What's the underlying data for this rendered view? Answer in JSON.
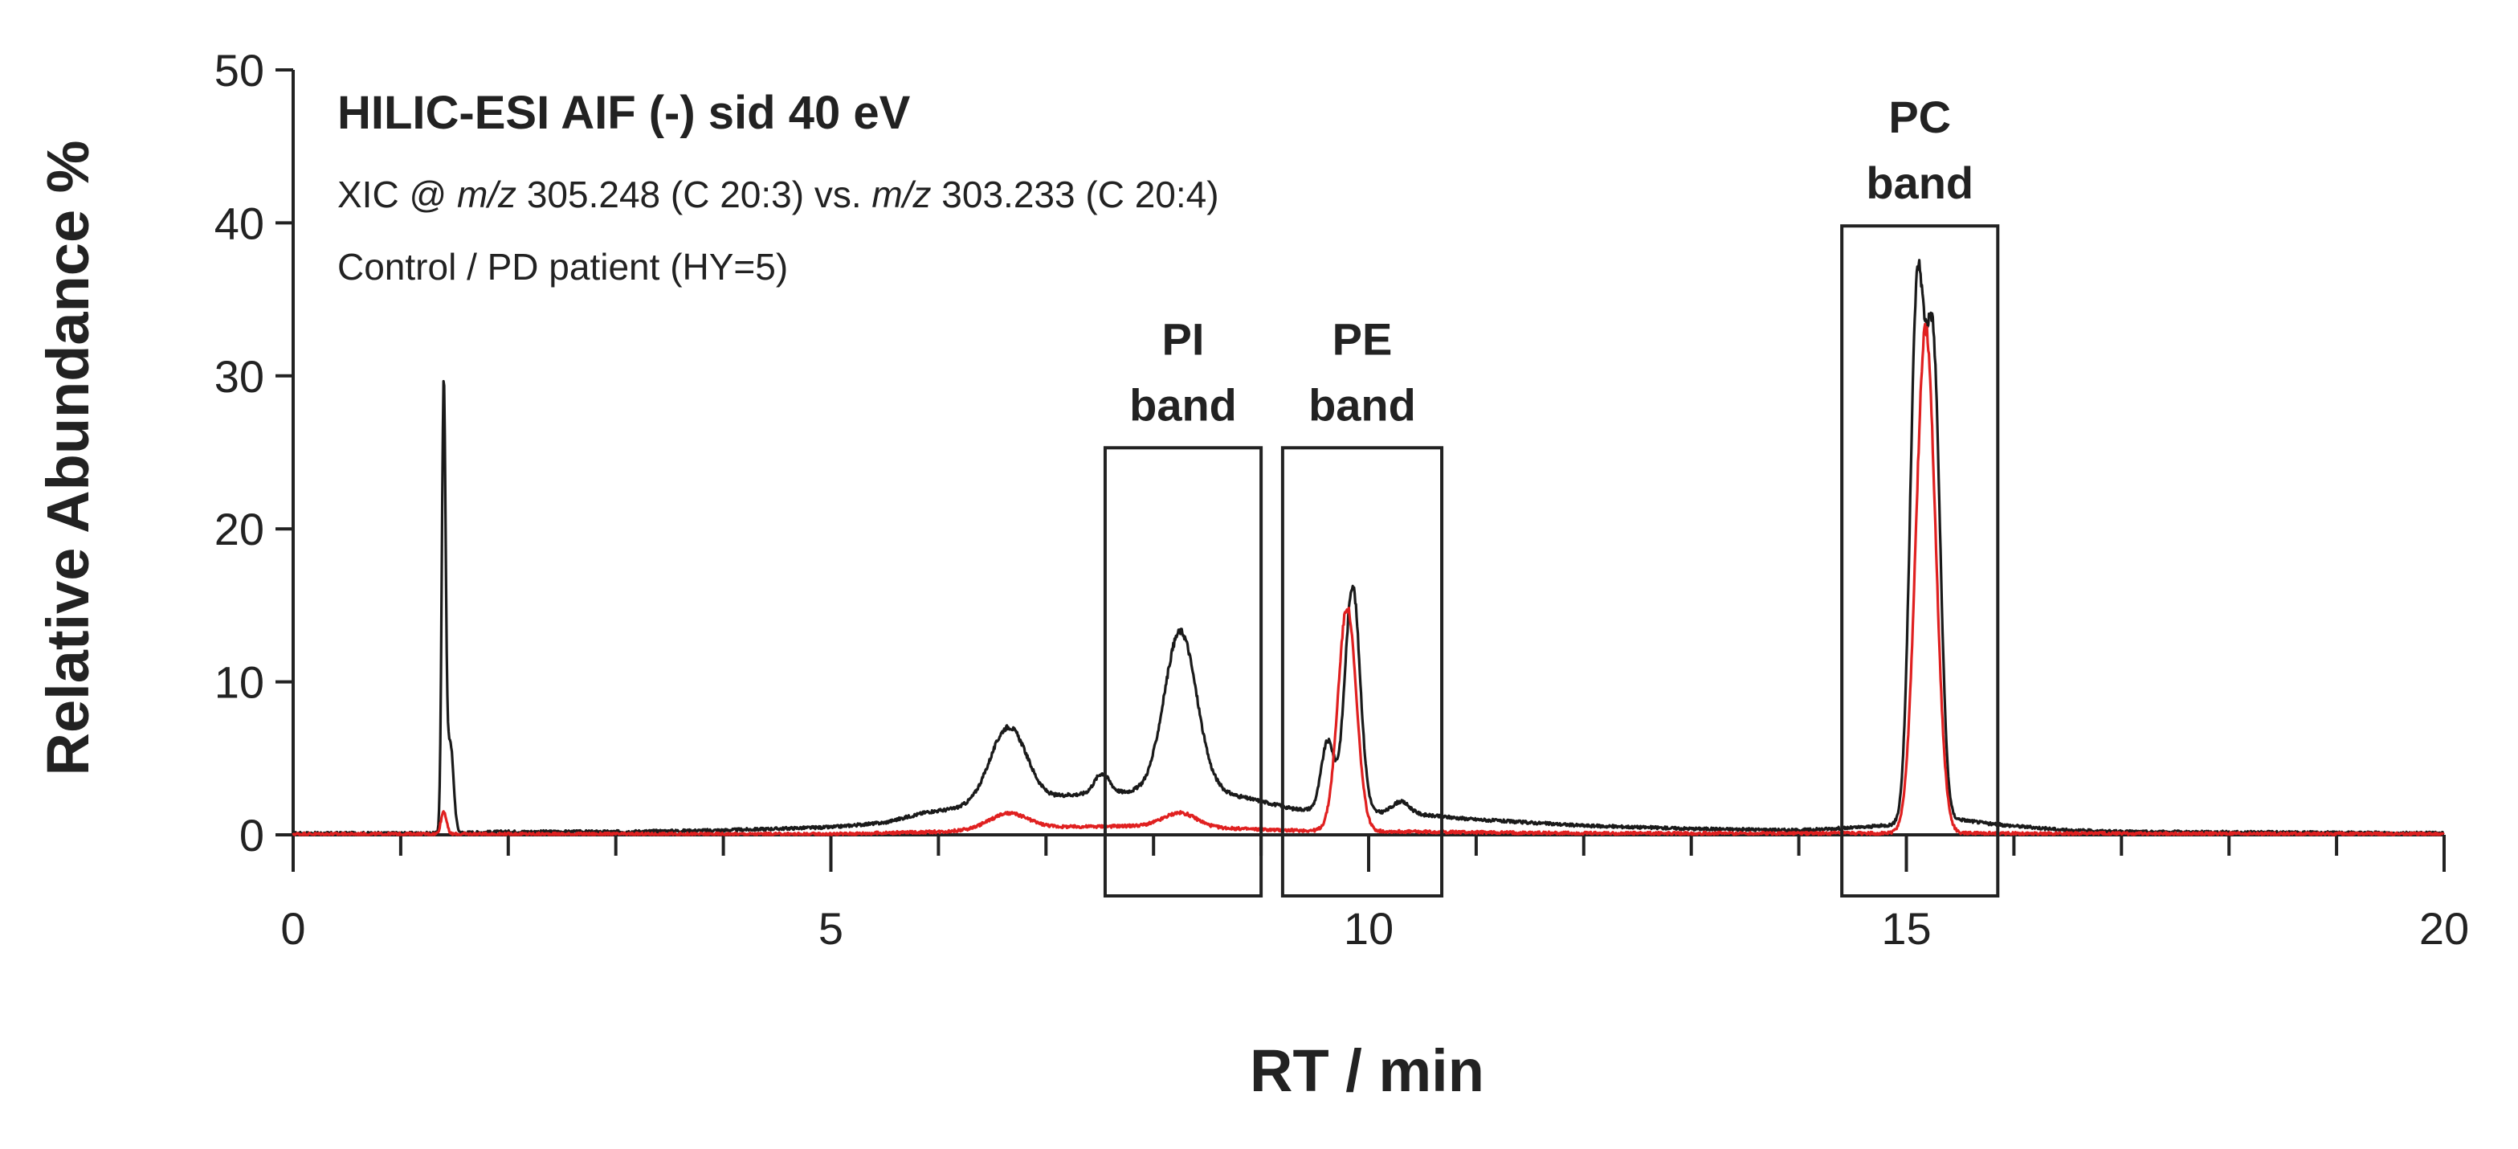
{
  "chart_data": {
    "type": "line",
    "title": "HILIC-ESI AIF (-) sid 40 eV",
    "subtitle": {
      "prefix": "XIC @ ",
      "mz1_label": "m/z",
      "mz1_value": " 305.248 (C 20:3) vs. ",
      "mz2_label": "m/z",
      "mz2_value": " 303.233 (C 20:4)"
    },
    "subtitle2": "Control / PD patient (HY=5)",
    "xlabel": "RT / min",
    "ylabel": "Relative Abundance %",
    "xlim": [
      0,
      20
    ],
    "ylim": [
      0,
      50
    ],
    "xticks": [
      0,
      5,
      10,
      15,
      20
    ],
    "xticks_minor_step": 1,
    "yticks": [
      0,
      10,
      20,
      30,
      40,
      50
    ],
    "grid": false,
    "bands": [
      {
        "label_line1": "PI",
        "label_line2": "band",
        "x_start": 7.55,
        "x_end": 9.0,
        "y_top": 25.3
      },
      {
        "label_line1": "PE",
        "label_line2": "band",
        "x_start": 9.2,
        "x_end": 10.68,
        "y_top": 25.3
      },
      {
        "label_line1": "PC",
        "label_line2": "band",
        "x_start": 14.4,
        "x_end": 15.85,
        "y_top": 39.8
      }
    ],
    "series": [
      {
        "name": "Control",
        "color": "#1a1a1a",
        "baseline": [
          [
            0,
            0.1
          ],
          [
            1.3,
            0.1
          ],
          [
            2,
            0.2
          ],
          [
            3,
            0.2
          ],
          [
            4,
            0.3
          ],
          [
            5,
            0.5
          ],
          [
            5.5,
            0.8
          ],
          [
            5.9,
            1.5
          ],
          [
            7.0,
            2.3
          ],
          [
            7.2,
            2.6
          ],
          [
            7.8,
            2.8
          ],
          [
            8.6,
            2.8
          ],
          [
            9.0,
            2.2
          ],
          [
            9.3,
            1.7
          ],
          [
            10.5,
            1.3
          ],
          [
            11,
            1.0
          ],
          [
            12,
            0.6
          ],
          [
            13,
            0.4
          ],
          [
            14,
            0.3
          ],
          [
            14.6,
            0.5
          ],
          [
            15.5,
            1.0
          ],
          [
            15.8,
            0.7
          ],
          [
            16.5,
            0.3
          ],
          [
            17,
            0.2
          ],
          [
            20,
            0.1
          ]
        ],
        "peaks": [
          {
            "x": 1.4,
            "height": 28.7,
            "width": 0.018
          },
          {
            "x": 1.46,
            "height": 6.0,
            "width": 0.03
          },
          {
            "x": 6.65,
            "height": 5.0,
            "width": 0.17
          },
          {
            "x": 7.52,
            "height": 1.3,
            "width": 0.07
          },
          {
            "x": 8.25,
            "height": 10.5,
            "width": 0.15
          },
          {
            "x": 9.62,
            "height": 4.5,
            "width": 0.06
          },
          {
            "x": 9.85,
            "height": 14.8,
            "width": 0.07
          },
          {
            "x": 10.3,
            "height": 0.8,
            "width": 0.08
          },
          {
            "x": 15.1,
            "height": 34.0,
            "width": 0.065
          },
          {
            "x": 15.25,
            "height": 30.0,
            "width": 0.065
          }
        ]
      },
      {
        "name": "PD patient (HY=5)",
        "color": "#e02020",
        "baseline": [
          [
            0,
            0.05
          ],
          [
            5,
            0.05
          ],
          [
            6,
            0.2
          ],
          [
            7,
            0.5
          ],
          [
            8,
            0.6
          ],
          [
            8.8,
            0.4
          ],
          [
            9.2,
            0.3
          ],
          [
            10.5,
            0.2
          ],
          [
            12,
            0.1
          ],
          [
            14,
            0.1
          ],
          [
            16,
            0.1
          ],
          [
            20,
            0.05
          ]
        ],
        "peaks": [
          {
            "x": 1.4,
            "height": 1.5,
            "width": 0.025
          },
          {
            "x": 6.65,
            "height": 1.0,
            "width": 0.18
          },
          {
            "x": 8.25,
            "height": 0.9,
            "width": 0.15
          },
          {
            "x": 9.8,
            "height": 14.6,
            "width": 0.085
          },
          {
            "x": 15.18,
            "height": 33.0,
            "width": 0.09
          }
        ]
      }
    ]
  }
}
